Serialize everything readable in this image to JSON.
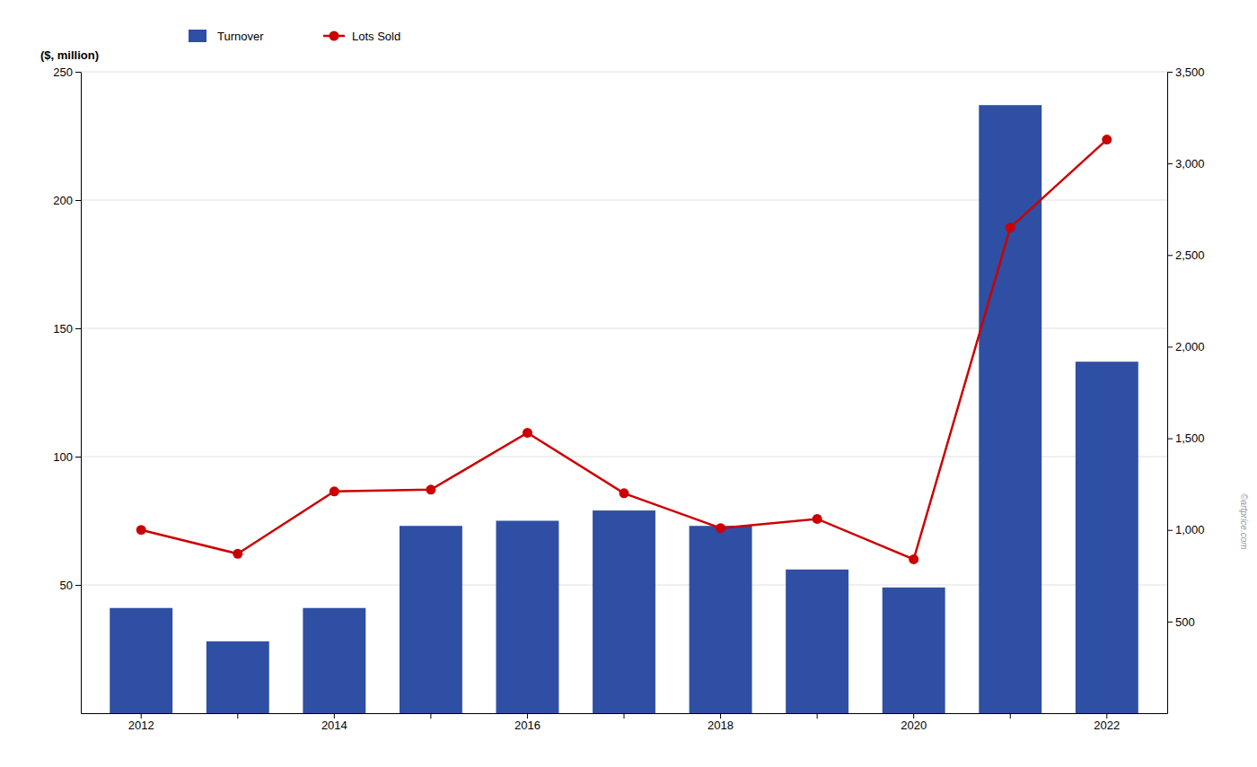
{
  "chart_data": {
    "type": "bar",
    "categories": [
      "2012",
      null,
      "2014",
      null,
      "2016",
      null,
      "2018",
      null,
      "2020",
      null,
      "2022"
    ],
    "series": [
      {
        "name": "Turnover",
        "type": "bar",
        "color": "#2e4fa3",
        "values": [
          41,
          28,
          41,
          73,
          75,
          79,
          73,
          56,
          49,
          237,
          137
        ]
      },
      {
        "name": "Lots Sold",
        "type": "line",
        "color": "#cc0000",
        "marker": "circle",
        "axis": "y2",
        "values": [
          1000,
          870,
          1210,
          1220,
          1530,
          1200,
          1010,
          1060,
          840,
          2650,
          3130
        ]
      }
    ],
    "y_label": "($, million)",
    "ylim": [
      0,
      250
    ],
    "yticks": [
      50,
      100,
      150,
      200,
      250
    ],
    "y2lim": [
      0,
      3500
    ],
    "y2ticks": [
      500,
      {
        "value": 1000,
        "label": "1,000"
      },
      {
        "value": 1500,
        "label": "1,500"
      },
      {
        "value": 2000,
        "label": "2,000"
      },
      {
        "value": 2500,
        "label": "2,500"
      },
      {
        "value": 3000,
        "label": "3,000"
      },
      {
        "value": 3500,
        "label": "3,500"
      }
    ],
    "grid": true,
    "legend": "upper left",
    "annotations": [
      "©artprice.com"
    ]
  }
}
